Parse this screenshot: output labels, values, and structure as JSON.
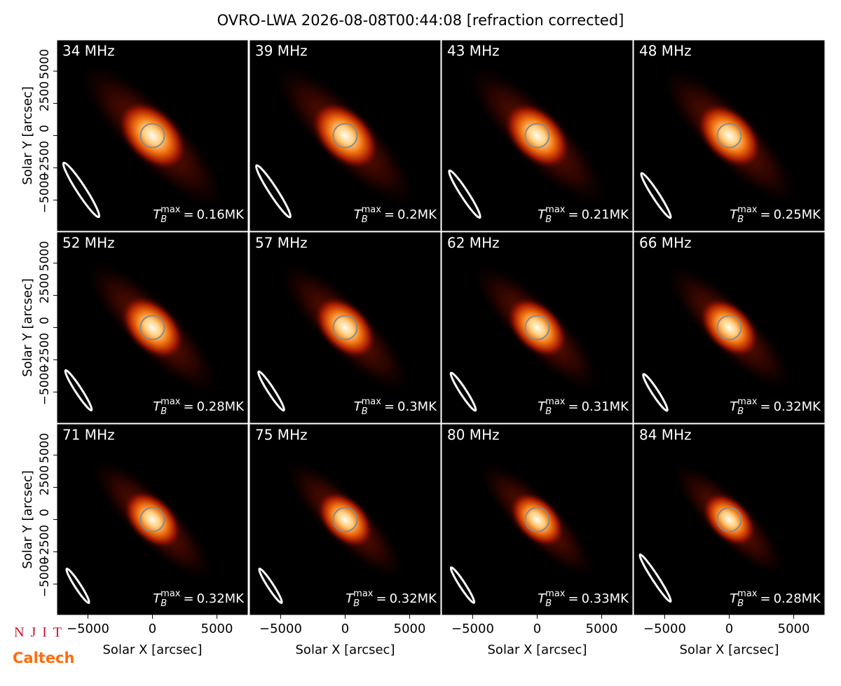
{
  "chart_data": {
    "type": "image_grid",
    "title": "OVRO-LWA 2026-08-08T00:44:08 [refraction corrected]",
    "xlabel": "Solar X [arcsec]",
    "ylabel": "Solar Y [arcsec]",
    "xlim": [
      -7360,
      7360
    ],
    "ylim": [
      -7360,
      7360
    ],
    "xticks": [
      {
        "value": -5000,
        "label": "−5000"
      },
      0,
      5000
    ],
    "yticks": [
      {
        "value": -5000,
        "label": "−5000"
      },
      {
        "value": -2500,
        "label": "−2500"
      },
      0,
      2500,
      5000
    ],
    "tb_symbol": {
      "base": "T",
      "sub": "B",
      "sup": "max",
      "eq": "="
    },
    "panels": [
      {
        "label": "34 MHz",
        "tb_max": "0.16MK"
      },
      {
        "label": "39 MHz",
        "tb_max": "0.2MK"
      },
      {
        "label": "43 MHz",
        "tb_max": "0.21MK"
      },
      {
        "label": "48 MHz",
        "tb_max": "0.25MK"
      },
      {
        "label": "52 MHz",
        "tb_max": "0.28MK"
      },
      {
        "label": "57 MHz",
        "tb_max": "0.3MK"
      },
      {
        "label": "62 MHz",
        "tb_max": "0.31MK"
      },
      {
        "label": "66 MHz",
        "tb_max": "0.32MK"
      },
      {
        "label": "71 MHz",
        "tb_max": "0.32MK"
      },
      {
        "label": "75 MHz",
        "tb_max": "0.32MK"
      },
      {
        "label": "80 MHz",
        "tb_max": "0.33MK"
      },
      {
        "label": "84 MHz",
        "tb_max": "0.28MK"
      }
    ],
    "logos": [
      "NJIT",
      "Caltech"
    ]
  }
}
